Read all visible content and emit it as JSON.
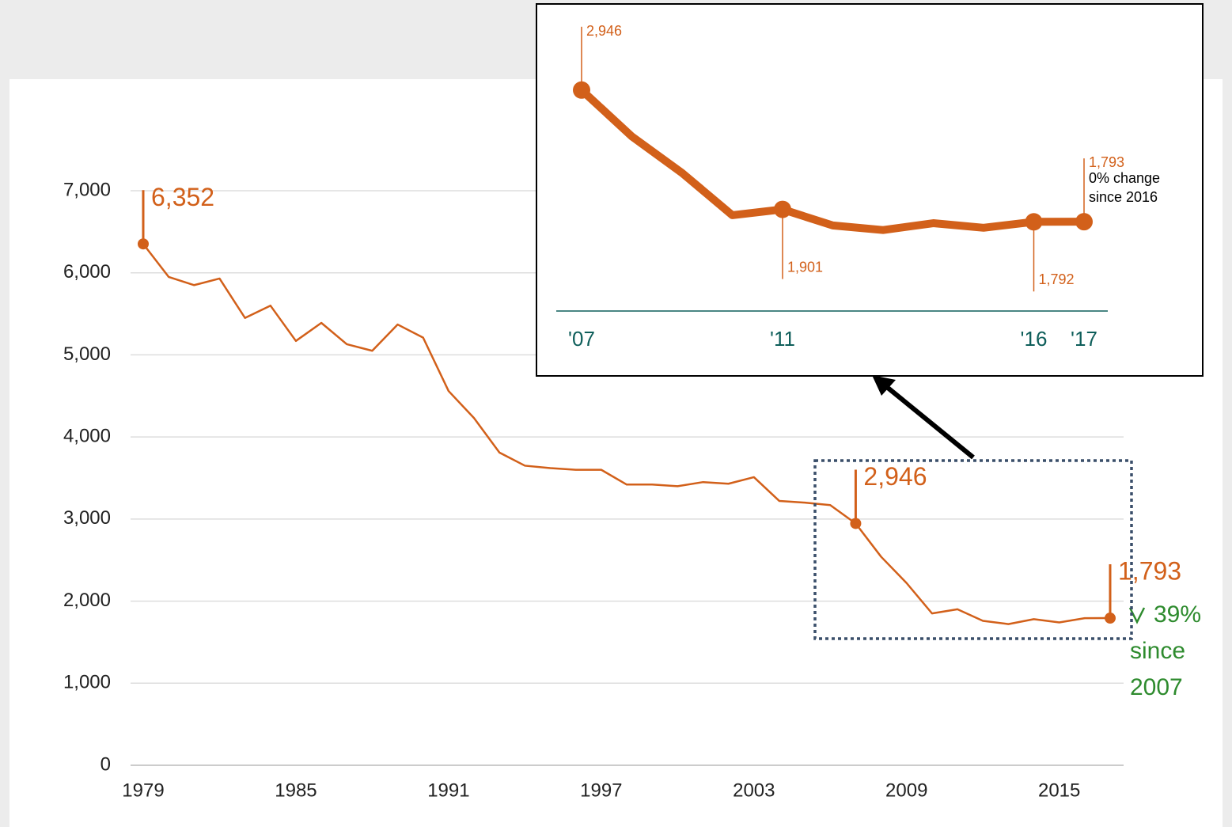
{
  "chart_data": [
    {
      "type": "line",
      "x": [
        1979,
        1980,
        1981,
        1982,
        1983,
        1984,
        1985,
        1986,
        1987,
        1988,
        1989,
        1990,
        1991,
        1992,
        1993,
        1994,
        1995,
        1996,
        1997,
        1998,
        1999,
        2000,
        2001,
        2002,
        2003,
        2004,
        2005,
        2006,
        2007,
        2008,
        2009,
        2010,
        2011,
        2012,
        2013,
        2014,
        2015,
        2016,
        2017
      ],
      "series": [
        {
          "color": "#d2601a",
          "values": [
            6352,
            5950,
            5850,
            5930,
            5450,
            5600,
            5170,
            5390,
            5130,
            5050,
            5370,
            5210,
            4560,
            4230,
            3810,
            3650,
            3620,
            3600,
            3600,
            3420,
            3420,
            3400,
            3450,
            3430,
            3510,
            3220,
            3200,
            3170,
            2946,
            2540,
            2220,
            1850,
            1901,
            1760,
            1720,
            1780,
            1740,
            1792,
            1793
          ],
          "value_labels": [
            "6,352",
            null,
            null,
            null,
            null,
            null,
            null,
            null,
            null,
            null,
            null,
            null,
            null,
            null,
            null,
            null,
            null,
            null,
            null,
            null,
            null,
            null,
            null,
            null,
            null,
            null,
            null,
            null,
            "2,946",
            null,
            null,
            null,
            null,
            null,
            null,
            null,
            null,
            null,
            "1,793"
          ]
        }
      ],
      "xlim": [
        1979,
        2017
      ],
      "xticks": [
        1979,
        1985,
        1991,
        1997,
        2003,
        2009,
        2015
      ],
      "ylim": [
        0,
        7000
      ],
      "yticks": [
        0,
        {
          "value": 1000,
          "label": "1,000"
        },
        {
          "value": 2000,
          "label": "2,000"
        },
        {
          "value": 3000,
          "label": "3,000"
        },
        {
          "value": 4000,
          "label": "4,000"
        },
        {
          "value": 5000,
          "label": "5,000"
        },
        {
          "value": 6000,
          "label": "6,000"
        },
        {
          "value": 7000,
          "label": "7,000"
        }
      ],
      "grid": true,
      "annotation": [
        "39%",
        "since",
        "2007"
      ]
    },
    {
      "type": "line",
      "x": [
        2007,
        2008,
        2009,
        2010,
        2011,
        2012,
        2013,
        2014,
        2015,
        2016,
        2017
      ],
      "series": [
        {
          "color": "#d2601a",
          "values": [
            2946,
            2540,
            2220,
            1850,
            1901,
            1760,
            1720,
            1780,
            1740,
            1792,
            1793
          ],
          "value_labels": [
            "2,946",
            null,
            null,
            null,
            "1,901",
            null,
            null,
            null,
            null,
            "1,792",
            "1,793"
          ]
        }
      ],
      "xlim": [
        2007,
        2017
      ],
      "xticks": [
        {
          "value": 2007,
          "label": "'07"
        },
        {
          "value": 2011,
          "label": "'11"
        },
        {
          "value": 2016,
          "label": "'16"
        },
        {
          "value": 2017,
          "label": "'17"
        }
      ],
      "ylim": [
        1600,
        3000
      ],
      "annotation": [
        "0% change",
        "since 2016"
      ]
    }
  ]
}
